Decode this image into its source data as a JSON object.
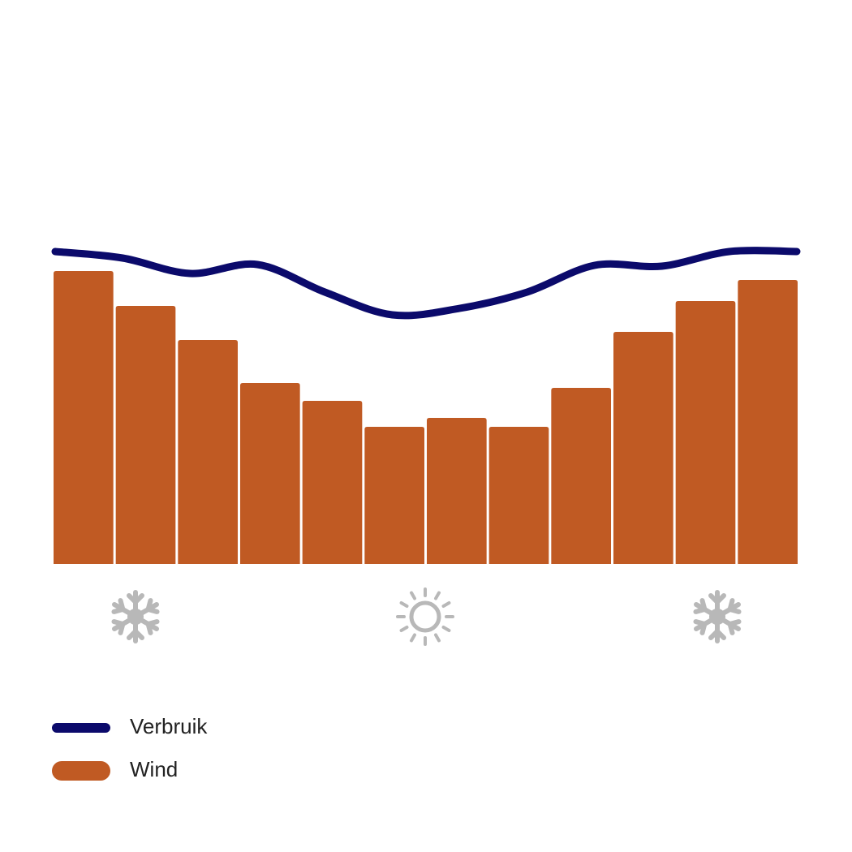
{
  "chart_data": {
    "type": "bar-line",
    "categories": [
      null,
      null,
      null,
      null,
      null,
      null,
      null,
      null,
      null,
      null,
      null,
      null
    ],
    "ylim": [
      0,
      400
    ],
    "series": [
      {
        "name": "Verbruik",
        "type": "line",
        "color": "#0b0a6b",
        "values": [
          385,
          377,
          358,
          369,
          335,
          307,
          315,
          335,
          368,
          367,
          385,
          385
        ]
      },
      {
        "name": "Wind",
        "type": "bar",
        "color": "#c05a23",
        "values": [
          361,
          318,
          276,
          223,
          201,
          169,
          180,
          169,
          217,
          286,
          324,
          350
        ]
      }
    ]
  }
}
